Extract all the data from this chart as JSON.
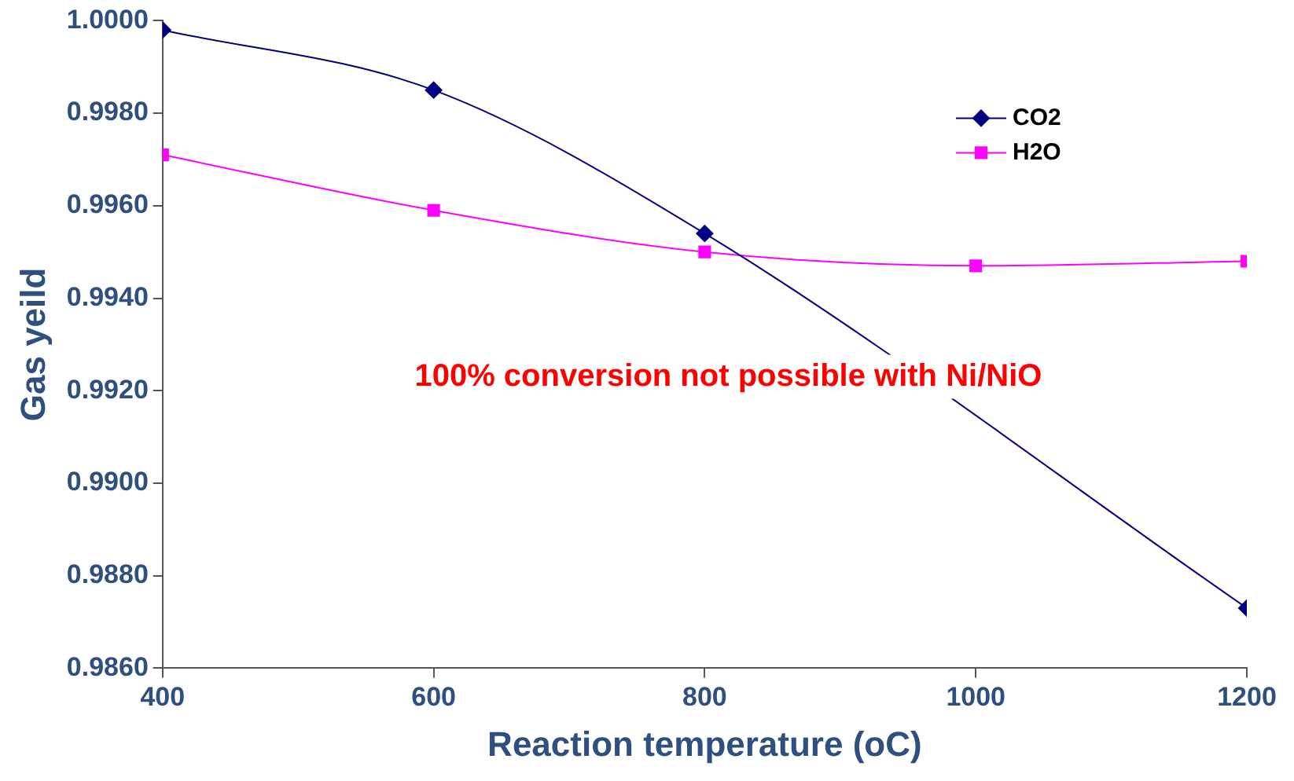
{
  "chart_data": {
    "type": "line",
    "xlabel": "Reaction temperature (oC)",
    "ylabel": "Gas yeild",
    "x": [
      400,
      600,
      800,
      1000,
      1200
    ],
    "series": [
      {
        "name": "CO2",
        "color": "#000080",
        "marker": "diamond",
        "values": [
          0.9998,
          0.9985,
          0.9954,
          null,
          0.9873
        ]
      },
      {
        "name": "H2O",
        "color": "#ff00ff",
        "marker": "square",
        "values": [
          0.9971,
          0.9959,
          0.995,
          0.9947,
          0.9948
        ]
      }
    ],
    "xlim": [
      400,
      1200
    ],
    "xticks": [
      400,
      600,
      800,
      1000,
      1200
    ],
    "ylim": [
      0.986,
      1
    ],
    "yticks": [
      {
        "value": 0.986,
        "label": "0.9860"
      },
      {
        "value": 0.988,
        "label": "0.9880"
      },
      {
        "value": 0.99,
        "label": "0.9900"
      },
      {
        "value": 0.992,
        "label": "0.9920"
      },
      {
        "value": 0.994,
        "label": "0.9940"
      },
      {
        "value": 0.996,
        "label": "0.9960"
      },
      {
        "value": 0.998,
        "label": "0.9980"
      },
      {
        "value": 1,
        "label": "1.0000"
      }
    ],
    "annotations": [
      "100% conversion not possible with Ni/NiO"
    ],
    "grid": false,
    "legend": "top right"
  }
}
